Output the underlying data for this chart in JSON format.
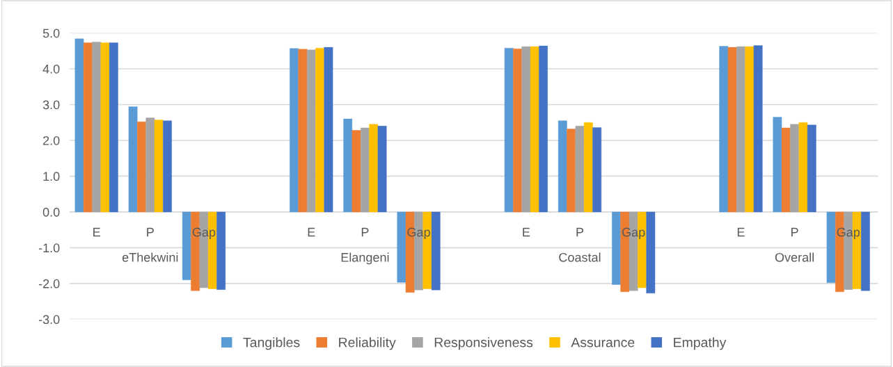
{
  "chart_data": {
    "type": "bar",
    "categories": [
      "E",
      "P",
      "Gap",
      null,
      "E",
      "P",
      "Gap",
      null,
      "E",
      "P",
      "Gap",
      null,
      "E",
      "P",
      "Gap"
    ],
    "series": [
      {
        "name": "Tangibles",
        "color": "#5b9bd5",
        "values": [
          4.84,
          2.94,
          -1.9,
          null,
          4.57,
          2.6,
          -1.97,
          null,
          4.58,
          2.55,
          -2.03,
          null,
          4.63,
          2.65,
          -1.98
        ]
      },
      {
        "name": "Reliability",
        "color": "#ed7d31",
        "values": [
          4.73,
          2.52,
          -2.2,
          null,
          4.55,
          2.28,
          -2.25,
          null,
          4.56,
          2.32,
          -2.23,
          null,
          4.6,
          2.35,
          -2.23
        ]
      },
      {
        "name": "Responsiveness",
        "color": "#a5a5a5",
        "values": [
          4.75,
          2.63,
          -2.12,
          null,
          4.53,
          2.35,
          -2.18,
          null,
          4.62,
          2.4,
          -2.2,
          null,
          4.62,
          2.45,
          -2.17
        ]
      },
      {
        "name": "Assurance",
        "color": "#ffc000",
        "values": [
          4.73,
          2.57,
          -2.15,
          null,
          4.58,
          2.45,
          -2.15,
          null,
          4.62,
          2.5,
          -2.12,
          null,
          4.62,
          2.5,
          -2.15
        ]
      },
      {
        "name": "Empathy",
        "color": "#4472c4",
        "values": [
          4.73,
          2.55,
          -2.17,
          null,
          4.6,
          2.4,
          -2.18,
          null,
          4.64,
          2.36,
          -2.27,
          null,
          4.65,
          2.43,
          -2.2
        ]
      }
    ],
    "annotations": [
      "eThekwini",
      "Elangeni",
      "Coastal",
      "Overall"
    ],
    "ylim": [
      -3,
      5
    ],
    "yticks": [
      {
        "value": -3,
        "label": "-3.0"
      },
      {
        "value": -2,
        "label": "-2.0"
      },
      {
        "value": -1,
        "label": "-1.0"
      },
      {
        "value": 0,
        "label": "0.0"
      },
      {
        "value": 1,
        "label": "1.0"
      },
      {
        "value": 2,
        "label": "2.0"
      },
      {
        "value": 3,
        "label": "3.0"
      },
      {
        "value": 4,
        "label": "4.0"
      },
      {
        "value": 5,
        "label": "5.0"
      }
    ],
    "grid": "y",
    "legend": "bottom"
  }
}
